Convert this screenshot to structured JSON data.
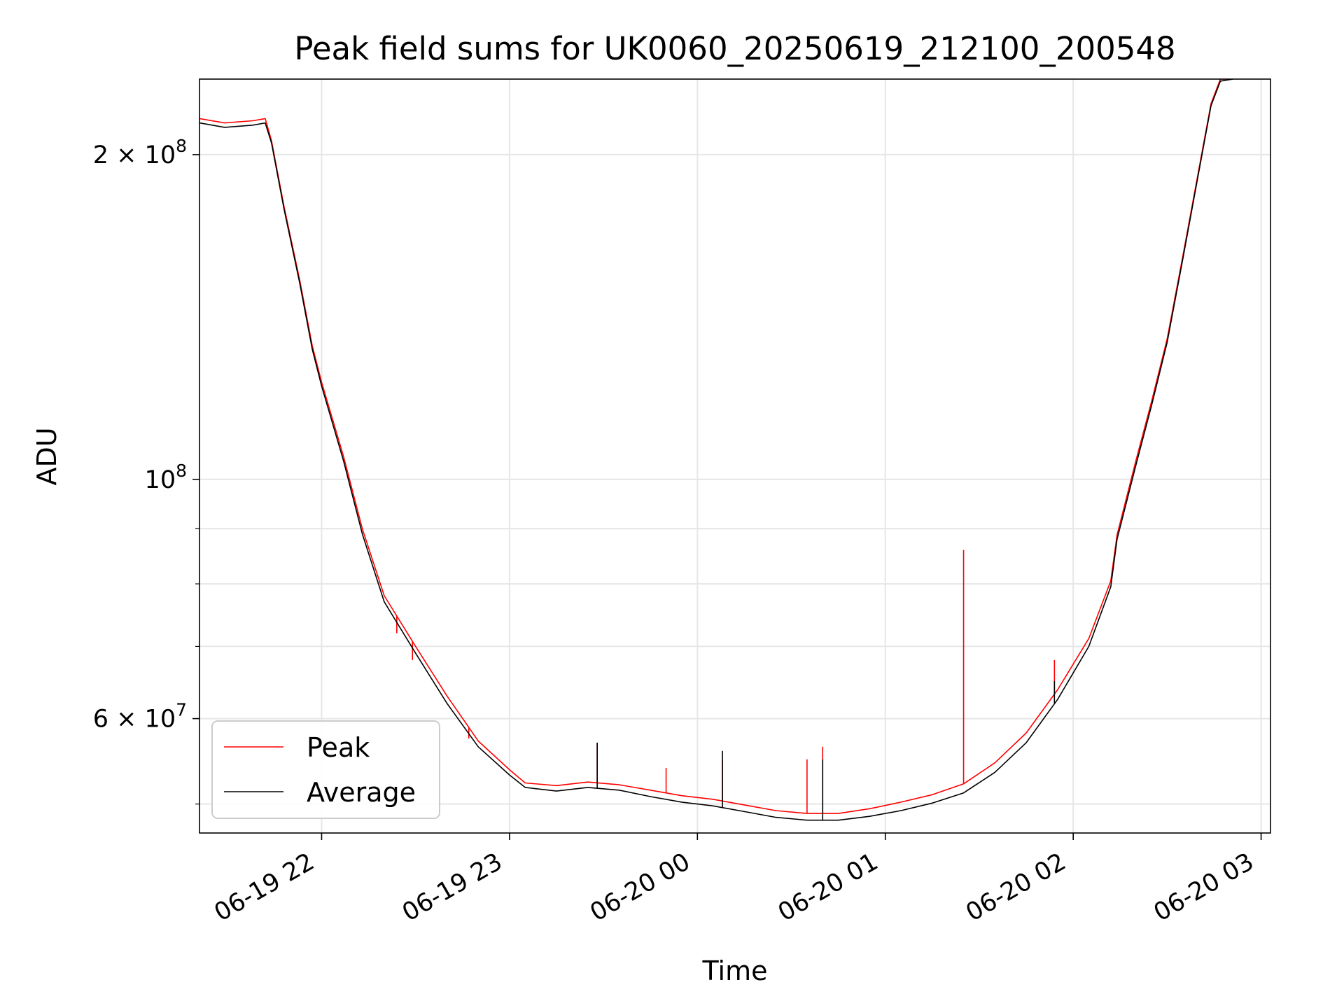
{
  "chart_data": {
    "type": "line",
    "title": "Peak field sums for UK0060_20250619_212100_200548",
    "xlabel": "Time",
    "ylabel": "ADU",
    "yscale": "log",
    "xlim": [
      "2025-06-19 21:21",
      "2025-06-20 03:03"
    ],
    "ylim": [
      47000000,
      235000000
    ],
    "xticks": [
      {
        "t": "2025-06-19 22:00",
        "label": "06-19 22"
      },
      {
        "t": "2025-06-19 23:00",
        "label": "06-19 23"
      },
      {
        "t": "2025-06-20 00:00",
        "label": "06-20 00"
      },
      {
        "t": "2025-06-20 01:00",
        "label": "06-20 01"
      },
      {
        "t": "2025-06-20 02:00",
        "label": "06-20 02"
      },
      {
        "t": "2025-06-20 03:00",
        "label": "06-20 03"
      }
    ],
    "yticks_major": [
      {
        "v": 60000000,
        "base": "6",
        "exp": "7"
      },
      {
        "v": 100000000,
        "base": "",
        "exp": "8"
      },
      {
        "v": 200000000,
        "base": "2",
        "exp": "8"
      }
    ],
    "yticks_minor": [
      50000000,
      70000000,
      80000000,
      90000000
    ],
    "grid": true,
    "legend": {
      "position": "lower-left",
      "entries": [
        "Peak",
        "Average"
      ]
    },
    "colors": {
      "Peak": "#ff0000",
      "Average": "#000000"
    },
    "series": [
      {
        "name": "Average",
        "points": [
          [
            "2025-06-19 21:21",
            214000000
          ],
          [
            "2025-06-19 21:29",
            212000000
          ],
          [
            "2025-06-19 21:38",
            213000000
          ],
          [
            "2025-06-19 21:42",
            214000000
          ],
          [
            "2025-06-19 21:44",
            205000000
          ],
          [
            "2025-06-19 21:48",
            178000000
          ],
          [
            "2025-06-19 21:53",
            152000000
          ],
          [
            "2025-06-19 21:57",
            132000000
          ],
          [
            "2025-06-19 22:00",
            122000000
          ],
          [
            "2025-06-19 22:07",
            104000000
          ],
          [
            "2025-06-19 22:13",
            89000000
          ],
          [
            "2025-06-19 22:20",
            77000000
          ],
          [
            "2025-06-19 22:30",
            69000000
          ],
          [
            "2025-06-19 22:40",
            62000000
          ],
          [
            "2025-06-19 22:50",
            56500000
          ],
          [
            "2025-06-19 23:00",
            53200000
          ],
          [
            "2025-06-19 23:05",
            51800000
          ],
          [
            "2025-06-19 23:15",
            51400000
          ],
          [
            "2025-06-19 23:25",
            51800000
          ],
          [
            "2025-06-19 23:35",
            51500000
          ],
          [
            "2025-06-19 23:45",
            50800000
          ],
          [
            "2025-06-19 23:55",
            50200000
          ],
          [
            "2025-06-20 00:05",
            49800000
          ],
          [
            "2025-06-20 00:15",
            49200000
          ],
          [
            "2025-06-20 00:25",
            48600000
          ],
          [
            "2025-06-20 00:35",
            48300000
          ],
          [
            "2025-06-20 00:45",
            48300000
          ],
          [
            "2025-06-20 00:55",
            48700000
          ],
          [
            "2025-06-20 01:05",
            49300000
          ],
          [
            "2025-06-20 01:15",
            50100000
          ],
          [
            "2025-06-20 01:25",
            51200000
          ],
          [
            "2025-06-20 01:35",
            53500000
          ],
          [
            "2025-06-20 01:45",
            57000000
          ],
          [
            "2025-06-20 01:55",
            62500000
          ],
          [
            "2025-06-20 02:05",
            70000000
          ],
          [
            "2025-06-20 02:12",
            79500000
          ],
          [
            "2025-06-20 02:14",
            88000000
          ],
          [
            "2025-06-20 02:20",
            103000000
          ],
          [
            "2025-06-20 02:25",
            117000000
          ],
          [
            "2025-06-20 02:30",
            134000000
          ],
          [
            "2025-06-20 02:35",
            160000000
          ],
          [
            "2025-06-20 02:40",
            192000000
          ],
          [
            "2025-06-20 02:44",
            222000000
          ],
          [
            "2025-06-20 02:47",
            234000000
          ],
          [
            "2025-06-20 02:51",
            235000000
          ]
        ],
        "spikes": [
          [
            "2025-06-19 23:28",
            57000000
          ],
          [
            "2025-06-20 00:08",
            56000000
          ],
          [
            "2025-06-20 00:40",
            55000000
          ],
          [
            "2025-06-20 01:54",
            65000000
          ]
        ]
      },
      {
        "name": "Peak",
        "points": [
          [
            "2025-06-19 21:21",
            216000000
          ],
          [
            "2025-06-19 21:29",
            214000000
          ],
          [
            "2025-06-19 21:38",
            215000000
          ],
          [
            "2025-06-19 21:42",
            216000000
          ],
          [
            "2025-06-19 21:44",
            206000000
          ],
          [
            "2025-06-19 21:48",
            179000000
          ],
          [
            "2025-06-19 21:53",
            153000000
          ],
          [
            "2025-06-19 21:57",
            133000000
          ],
          [
            "2025-06-19 22:00",
            123000000
          ],
          [
            "2025-06-19 22:07",
            105000000
          ],
          [
            "2025-06-19 22:13",
            90000000
          ],
          [
            "2025-06-19 22:20",
            78000000
          ],
          [
            "2025-06-19 22:30",
            70000000
          ],
          [
            "2025-06-19 22:40",
            63000000
          ],
          [
            "2025-06-19 22:50",
            57200000
          ],
          [
            "2025-06-19 23:00",
            53800000
          ],
          [
            "2025-06-19 23:05",
            52300000
          ],
          [
            "2025-06-19 23:15",
            52000000
          ],
          [
            "2025-06-19 23:25",
            52400000
          ],
          [
            "2025-06-19 23:35",
            52100000
          ],
          [
            "2025-06-19 23:45",
            51500000
          ],
          [
            "2025-06-19 23:55",
            50900000
          ],
          [
            "2025-06-20 00:05",
            50500000
          ],
          [
            "2025-06-20 00:15",
            49900000
          ],
          [
            "2025-06-20 00:25",
            49300000
          ],
          [
            "2025-06-20 00:35",
            49000000
          ],
          [
            "2025-06-20 00:45",
            49000000
          ],
          [
            "2025-06-20 00:55",
            49500000
          ],
          [
            "2025-06-20 01:05",
            50200000
          ],
          [
            "2025-06-20 01:15",
            51000000
          ],
          [
            "2025-06-20 01:25",
            52200000
          ],
          [
            "2025-06-20 01:35",
            54600000
          ],
          [
            "2025-06-20 01:45",
            58200000
          ],
          [
            "2025-06-20 01:55",
            63800000
          ],
          [
            "2025-06-20 02:05",
            71200000
          ],
          [
            "2025-06-20 02:12",
            80500000
          ],
          [
            "2025-06-20 02:14",
            88800000
          ],
          [
            "2025-06-20 02:20",
            104000000
          ],
          [
            "2025-06-20 02:25",
            118000000
          ],
          [
            "2025-06-20 02:30",
            135000000
          ],
          [
            "2025-06-20 02:35",
            161000000
          ],
          [
            "2025-06-20 02:40",
            193000000
          ],
          [
            "2025-06-20 02:44",
            223000000
          ],
          [
            "2025-06-20 02:47",
            235000000
          ],
          [
            "2025-06-20 02:51",
            235000000
          ]
        ],
        "spikes": [
          [
            "2025-06-19 22:24",
            72000000
          ],
          [
            "2025-06-19 22:29",
            68000000
          ],
          [
            "2025-06-19 22:47",
            57500000
          ],
          [
            "2025-06-19 23:28",
            57000000
          ],
          [
            "2025-06-19 23:50",
            54000000
          ],
          [
            "2025-06-20 00:08",
            55000000
          ],
          [
            "2025-06-20 00:35",
            55000000
          ],
          [
            "2025-06-20 00:40",
            56500000
          ],
          [
            "2025-06-20 01:25",
            86000000
          ],
          [
            "2025-06-20 01:54",
            68000000
          ]
        ]
      }
    ]
  }
}
